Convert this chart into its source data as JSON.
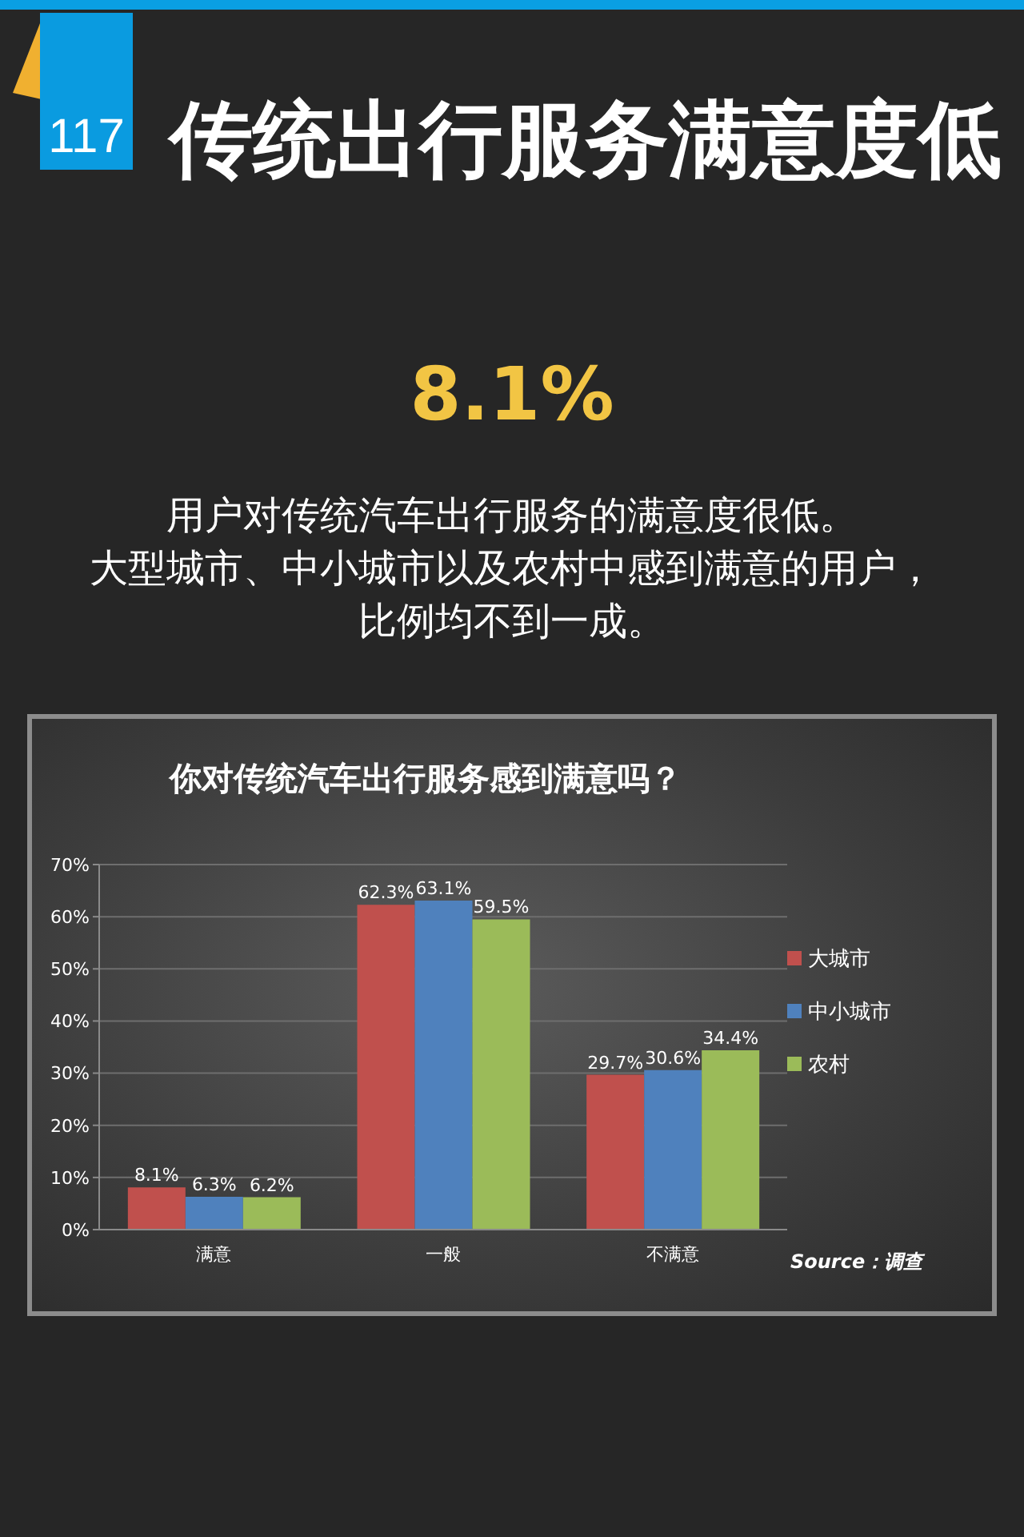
{
  "chart_data": {
    "type": "bar",
    "title": "传统出行服务满意度低",
    "subtitle": "你对传统汽车出行服务感到满意吗？",
    "categories": [
      "满意",
      "一般",
      "不满意"
    ],
    "series": [
      {
        "name": "大城市",
        "color": "#c0504d",
        "values": [
          8.1,
          62.3,
          29.7
        ],
        "value_labels": [
          "8.1%",
          "62.3%",
          "29.7%"
        ]
      },
      {
        "name": "中小城市",
        "color": "#4f81bd",
        "values": [
          6.3,
          63.1,
          30.6
        ],
        "value_labels": [
          "6.3%",
          "63.1%",
          "30.6%"
        ]
      },
      {
        "name": "农村",
        "color": "#9bbb59",
        "values": [
          6.2,
          59.5,
          34.4
        ],
        "value_labels": [
          "6.2%",
          "59.5%",
          "34.4%"
        ]
      }
    ],
    "ylim": [
      0,
      70
    ],
    "yticks": [
      {
        "value": 0,
        "label": "0%"
      },
      {
        "value": 10,
        "label": "10%"
      },
      {
        "value": 20,
        "label": "20%"
      },
      {
        "value": 30,
        "label": "30%"
      },
      {
        "value": 40,
        "label": "40%"
      },
      {
        "value": 50,
        "label": "50%"
      },
      {
        "value": 60,
        "label": "60%"
      },
      {
        "value": 70,
        "label": "70%"
      }
    ],
    "grid": "y",
    "legend": "right",
    "annotations": [
      "117",
      "8.1%",
      "用户对传统汽车出行服务的满意度很低。",
      "大型城市、中小城市以及农村中感到满意的用户，",
      "比例均不到一成。",
      "Source：调查"
    ]
  }
}
